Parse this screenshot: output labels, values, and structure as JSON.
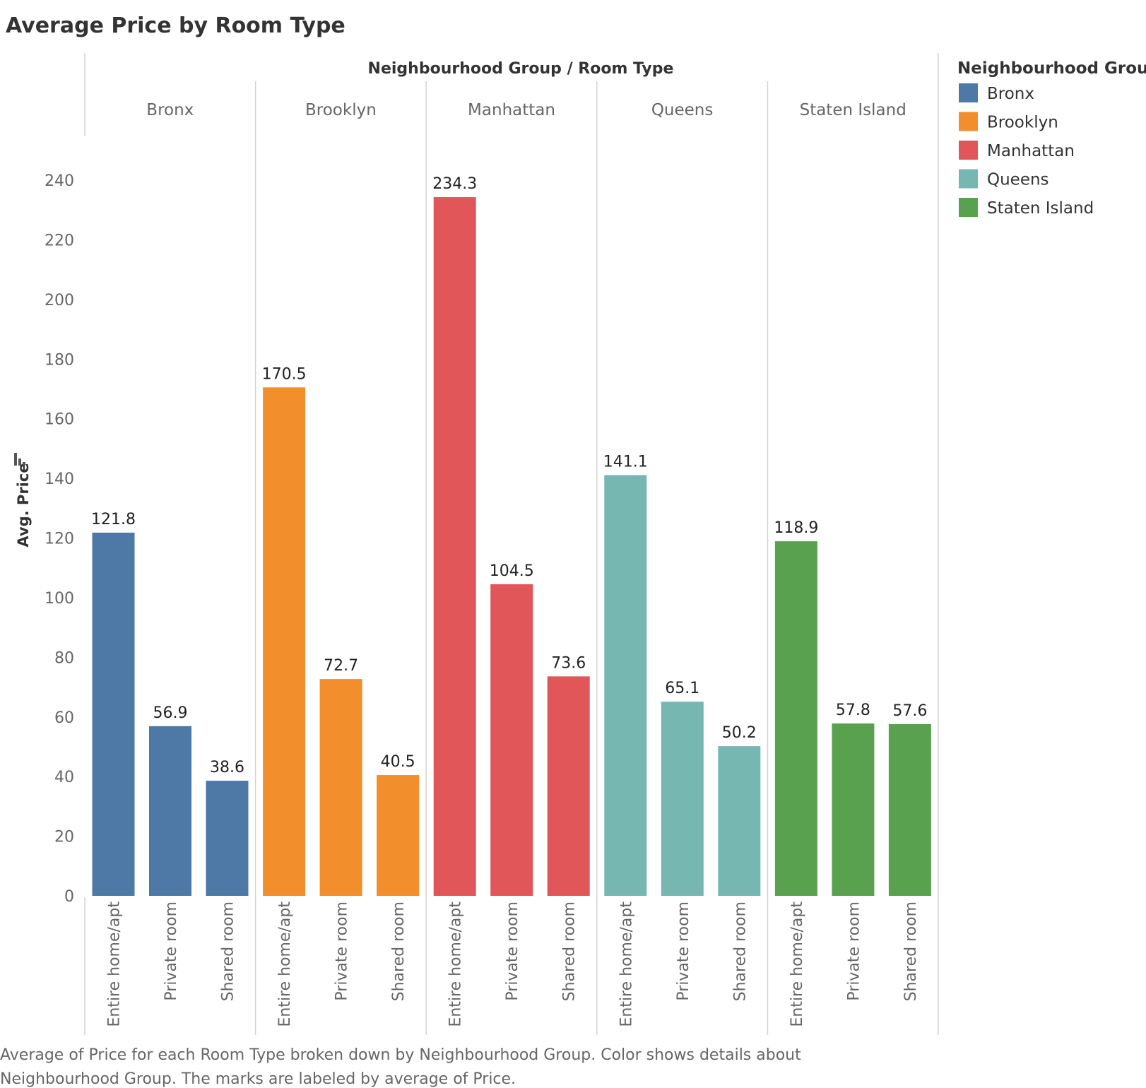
{
  "chart_data": {
    "type": "bar",
    "title": "Average Price by Room Type",
    "column_header": "Neighbourhood Group  /  Room Type",
    "ylabel": "Avg. Price",
    "ylim": [
      0,
      245
    ],
    "yticks": [
      0,
      20,
      40,
      60,
      80,
      100,
      120,
      140,
      160,
      180,
      200,
      220,
      240
    ],
    "groups": [
      "Bronx",
      "Brooklyn",
      "Manhattan",
      "Queens",
      "Staten Island"
    ],
    "categories": [
      "Entire home/apt",
      "Private room",
      "Shared room"
    ],
    "series": [
      {
        "name": "Bronx",
        "color": "#4e79a7",
        "values": [
          121.8,
          56.9,
          38.6
        ]
      },
      {
        "name": "Brooklyn",
        "color": "#f28e2b",
        "values": [
          170.5,
          72.7,
          40.5
        ]
      },
      {
        "name": "Manhattan",
        "color": "#e15759",
        "values": [
          234.3,
          104.5,
          73.6
        ]
      },
      {
        "name": "Queens",
        "color": "#76b7b2",
        "values": [
          141.1,
          65.1,
          50.2
        ]
      },
      {
        "name": "Staten Island",
        "color": "#59a14f",
        "values": [
          118.9,
          57.8,
          57.6
        ]
      }
    ],
    "legend": {
      "title": "Neighbourhood Group",
      "placement": "right",
      "items": [
        "Bronx",
        "Brooklyn",
        "Manhattan",
        "Queens",
        "Staten Island"
      ]
    },
    "grid": false
  },
  "caption": {
    "line1": "Average of Price for each Room Type broken down by Neighbourhood Group.  Color shows details about",
    "line2": "Neighbourhood Group.  The marks are labeled by average of Price."
  }
}
